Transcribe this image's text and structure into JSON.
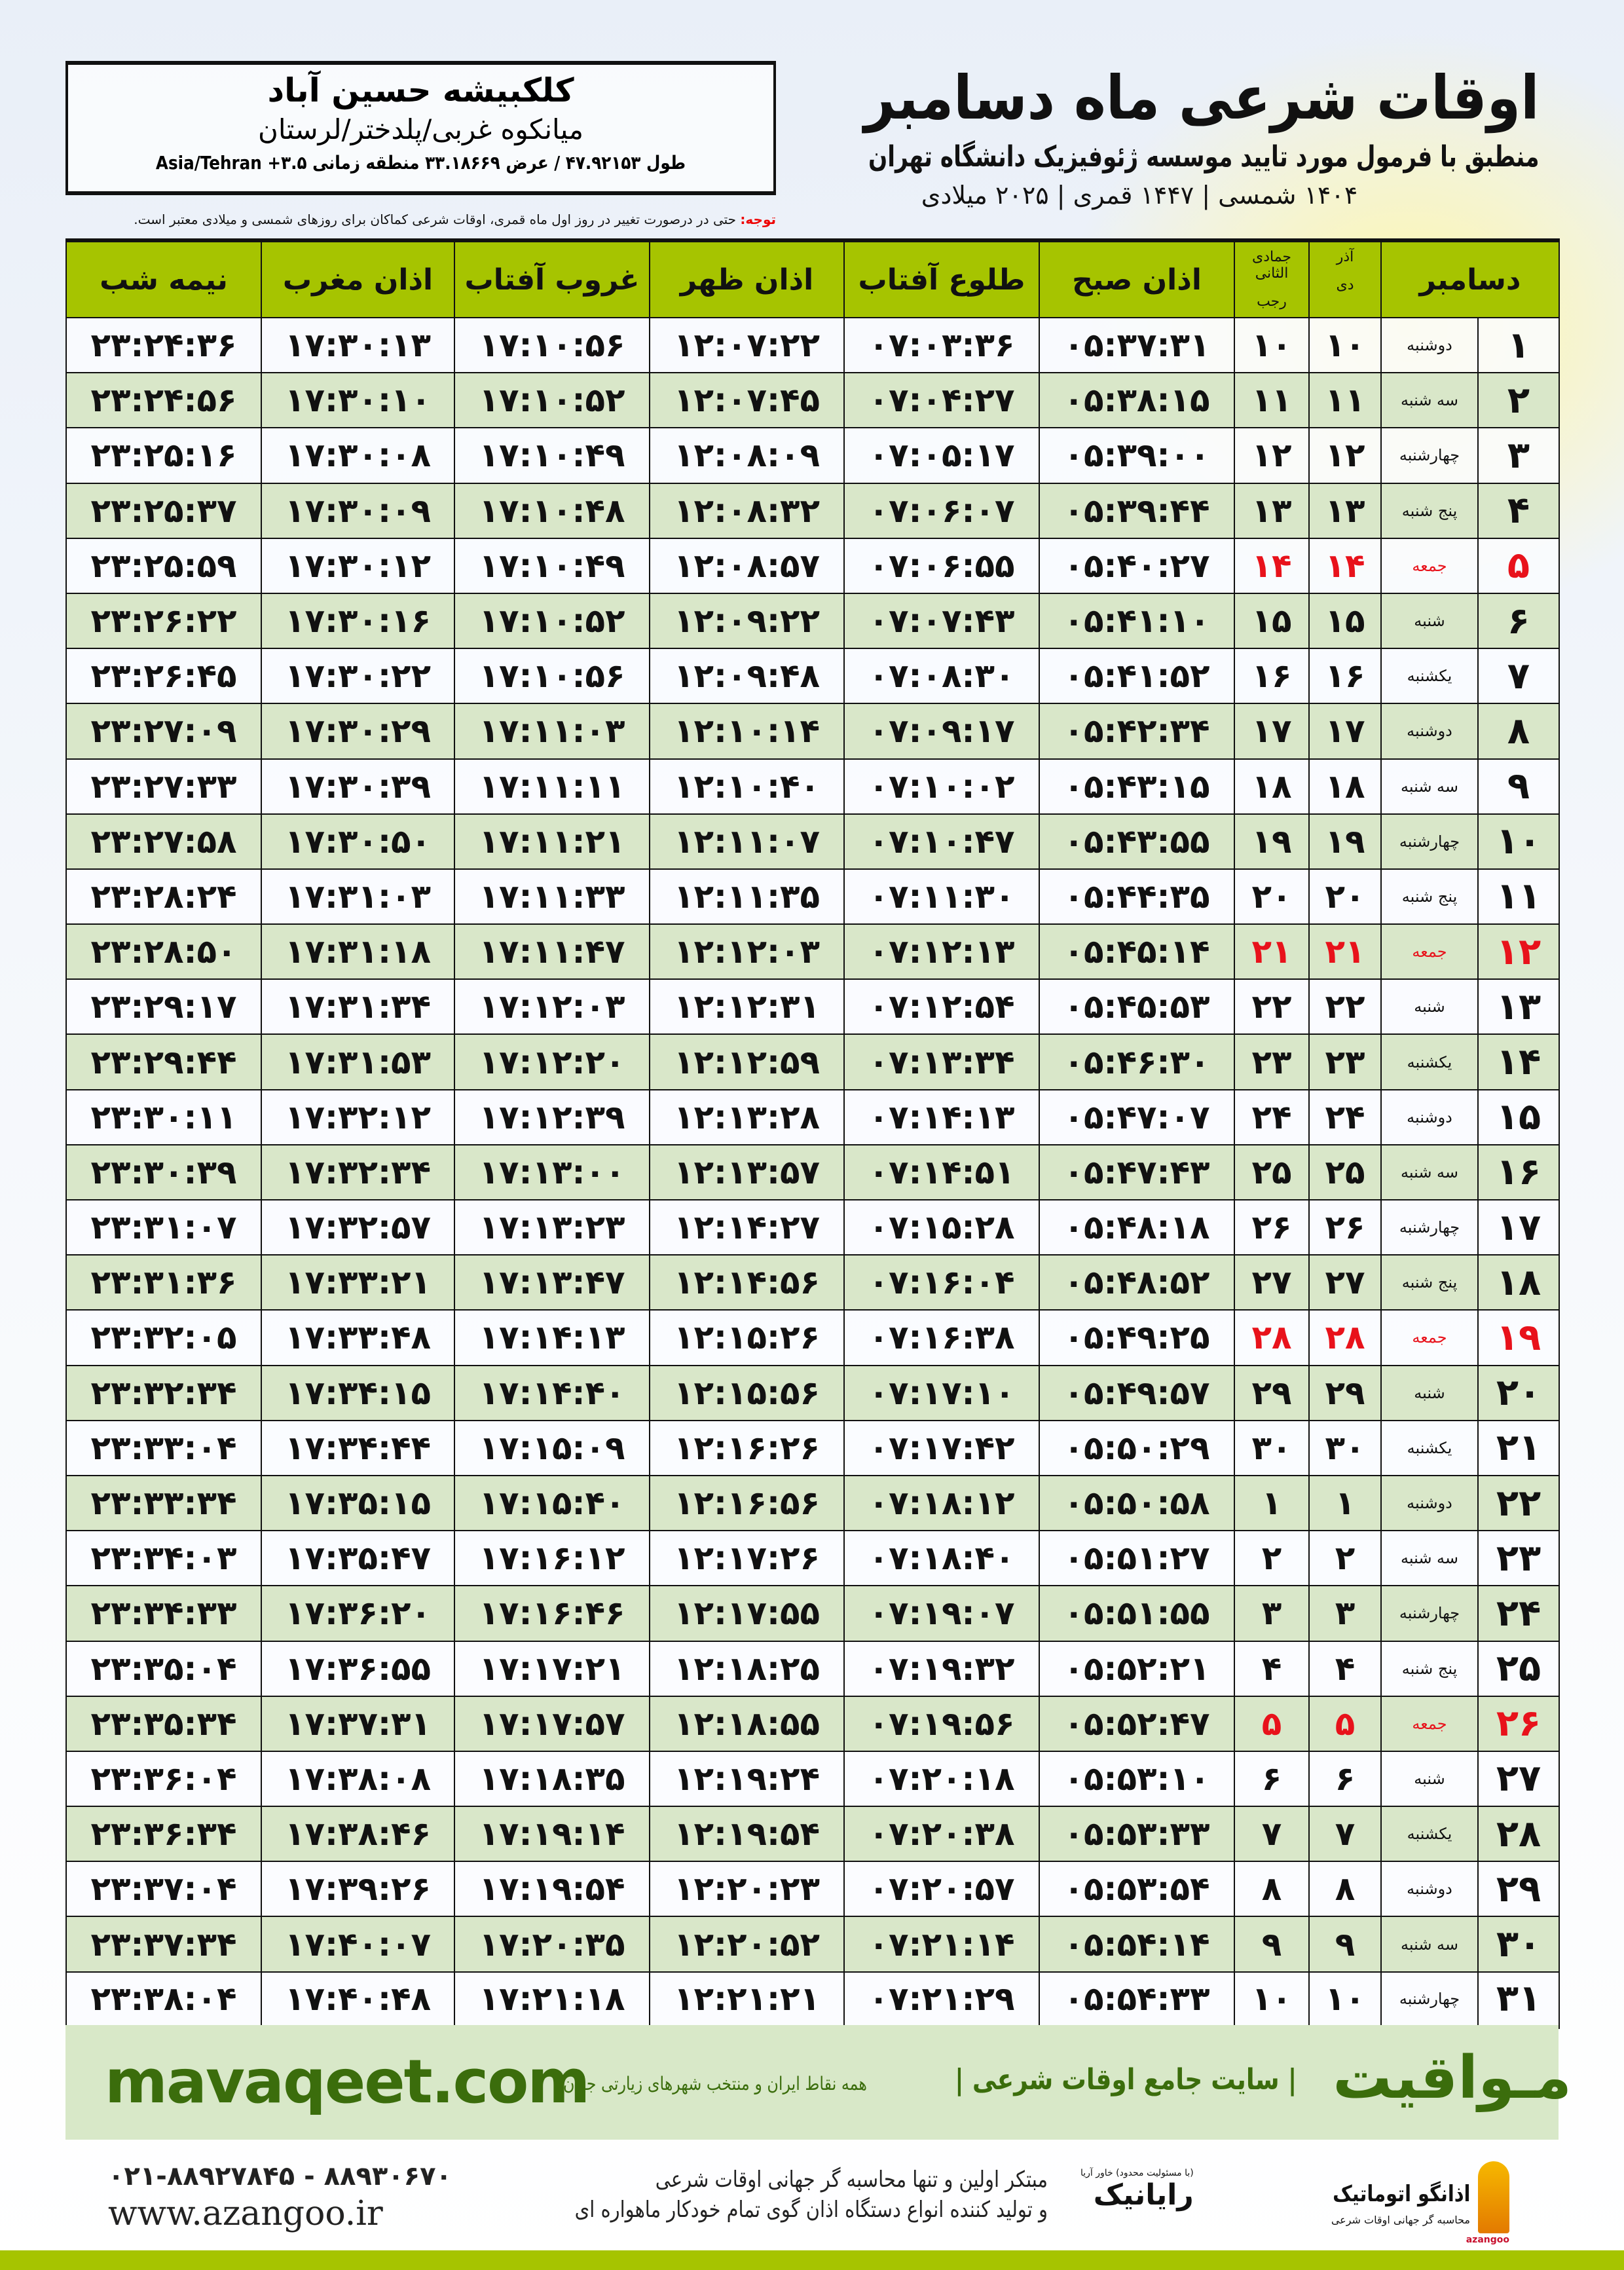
{
  "header": {
    "title": "اوقات شرعی ماه دسامبر",
    "subtitle": "منطبق با فرمول مورد تایید موسسه ژئوفیزیک دانشگاه تهران",
    "dates": "۱۴۰۴ شمسی | ۱۴۴۷ قمری | ۲۰۲۵ میلادی"
  },
  "location": {
    "name": "کلکبیشه حسین آباد",
    "region": "میانکوه غربی/پلدختر/لرستان",
    "coords": "طول ۴۷.۹۲۱۵۳ / عرض ۳۳.۱۸۶۶۹ منطقه زمانی ۳.۵+ Asia/Tehran"
  },
  "note": {
    "label": "توجه:",
    "text": " حتی در درصورت تغییر در روز اول ماه قمری، اوقات شرعی کماکان برای روزهای شمسی و میلادی معتبر است."
  },
  "columns": {
    "month": "دسامبر",
    "dey_month": "آذر",
    "dey": "دی",
    "hijri_month": "جمادی الثانی",
    "rajab": "رجب",
    "fajr": "اذان صبح",
    "sunrise": "طلوع آفتاب",
    "dhuhr": "اذان ظهر",
    "sunset": "غروب آفتاب",
    "maghrib": "اذان مغرب",
    "midnight": "نیمه شب"
  },
  "colors": {
    "header_green": "#a6c400",
    "row_green": "#d9e7c9",
    "friday_red": "#e8121b",
    "brand_green": "#3b6d0c"
  },
  "rows": [
    [
      "۱",
      "دوشنبه",
      "۱۰",
      "۱۰",
      "۰۵:۳۷:۳۱",
      "۰۷:۰۳:۳۶",
      "۱۲:۰۷:۲۲",
      "۱۷:۱۰:۵۶",
      "۱۷:۳۰:۱۳",
      "۲۳:۲۴:۳۶",
      false
    ],
    [
      "۲",
      "سه شنبه",
      "۱۱",
      "۱۱",
      "۰۵:۳۸:۱۵",
      "۰۷:۰۴:۲۷",
      "۱۲:۰۷:۴۵",
      "۱۷:۱۰:۵۲",
      "۱۷:۳۰:۱۰",
      "۲۳:۲۴:۵۶",
      false
    ],
    [
      "۳",
      "چهارشنبه",
      "۱۲",
      "۱۲",
      "۰۵:۳۹:۰۰",
      "۰۷:۰۵:۱۷",
      "۱۲:۰۸:۰۹",
      "۱۷:۱۰:۴۹",
      "۱۷:۳۰:۰۸",
      "۲۳:۲۵:۱۶",
      false
    ],
    [
      "۴",
      "پنج شنبه",
      "۱۳",
      "۱۳",
      "۰۵:۳۹:۴۴",
      "۰۷:۰۶:۰۷",
      "۱۲:۰۸:۳۲",
      "۱۷:۱۰:۴۸",
      "۱۷:۳۰:۰۹",
      "۲۳:۲۵:۳۷",
      false
    ],
    [
      "۵",
      "جمعه",
      "۱۴",
      "۱۴",
      "۰۵:۴۰:۲۷",
      "۰۷:۰۶:۵۵",
      "۱۲:۰۸:۵۷",
      "۱۷:۱۰:۴۹",
      "۱۷:۳۰:۱۲",
      "۲۳:۲۵:۵۹",
      true
    ],
    [
      "۶",
      "شنبه",
      "۱۵",
      "۱۵",
      "۰۵:۴۱:۱۰",
      "۰۷:۰۷:۴۳",
      "۱۲:۰۹:۲۲",
      "۱۷:۱۰:۵۲",
      "۱۷:۳۰:۱۶",
      "۲۳:۲۶:۲۲",
      false
    ],
    [
      "۷",
      "یکشنبه",
      "۱۶",
      "۱۶",
      "۰۵:۴۱:۵۲",
      "۰۷:۰۸:۳۰",
      "۱۲:۰۹:۴۸",
      "۱۷:۱۰:۵۶",
      "۱۷:۳۰:۲۲",
      "۲۳:۲۶:۴۵",
      false
    ],
    [
      "۸",
      "دوشنبه",
      "۱۷",
      "۱۷",
      "۰۵:۴۲:۳۴",
      "۰۷:۰۹:۱۷",
      "۱۲:۱۰:۱۴",
      "۱۷:۱۱:۰۳",
      "۱۷:۳۰:۲۹",
      "۲۳:۲۷:۰۹",
      false
    ],
    [
      "۹",
      "سه شنبه",
      "۱۸",
      "۱۸",
      "۰۵:۴۳:۱۵",
      "۰۷:۱۰:۰۲",
      "۱۲:۱۰:۴۰",
      "۱۷:۱۱:۱۱",
      "۱۷:۳۰:۳۹",
      "۲۳:۲۷:۳۳",
      false
    ],
    [
      "۱۰",
      "چهارشنبه",
      "۱۹",
      "۱۹",
      "۰۵:۴۳:۵۵",
      "۰۷:۱۰:۴۷",
      "۱۲:۱۱:۰۷",
      "۱۷:۱۱:۲۱",
      "۱۷:۳۰:۵۰",
      "۲۳:۲۷:۵۸",
      false
    ],
    [
      "۱۱",
      "پنج شنبه",
      "۲۰",
      "۲۰",
      "۰۵:۴۴:۳۵",
      "۰۷:۱۱:۳۰",
      "۱۲:۱۱:۳۵",
      "۱۷:۱۱:۳۳",
      "۱۷:۳۱:۰۳",
      "۲۳:۲۸:۲۴",
      false
    ],
    [
      "۱۲",
      "جمعه",
      "۲۱",
      "۲۱",
      "۰۵:۴۵:۱۴",
      "۰۷:۱۲:۱۳",
      "۱۲:۱۲:۰۳",
      "۱۷:۱۱:۴۷",
      "۱۷:۳۱:۱۸",
      "۲۳:۲۸:۵۰",
      true
    ],
    [
      "۱۳",
      "شنبه",
      "۲۲",
      "۲۲",
      "۰۵:۴۵:۵۳",
      "۰۷:۱۲:۵۴",
      "۱۲:۱۲:۳۱",
      "۱۷:۱۲:۰۳",
      "۱۷:۳۱:۳۴",
      "۲۳:۲۹:۱۷",
      false
    ],
    [
      "۱۴",
      "یکشنبه",
      "۲۳",
      "۲۳",
      "۰۵:۴۶:۳۰",
      "۰۷:۱۳:۳۴",
      "۱۲:۱۲:۵۹",
      "۱۷:۱۲:۲۰",
      "۱۷:۳۱:۵۳",
      "۲۳:۲۹:۴۴",
      false
    ],
    [
      "۱۵",
      "دوشنبه",
      "۲۴",
      "۲۴",
      "۰۵:۴۷:۰۷",
      "۰۷:۱۴:۱۳",
      "۱۲:۱۳:۲۸",
      "۱۷:۱۲:۳۹",
      "۱۷:۳۲:۱۲",
      "۲۳:۳۰:۱۱",
      false
    ],
    [
      "۱۶",
      "سه شنبه",
      "۲۵",
      "۲۵",
      "۰۵:۴۷:۴۳",
      "۰۷:۱۴:۵۱",
      "۱۲:۱۳:۵۷",
      "۱۷:۱۳:۰۰",
      "۱۷:۳۲:۳۴",
      "۲۳:۳۰:۳۹",
      false
    ],
    [
      "۱۷",
      "چهارشنبه",
      "۲۶",
      "۲۶",
      "۰۵:۴۸:۱۸",
      "۰۷:۱۵:۲۸",
      "۱۲:۱۴:۲۷",
      "۱۷:۱۳:۲۳",
      "۱۷:۳۲:۵۷",
      "۲۳:۳۱:۰۷",
      false
    ],
    [
      "۱۸",
      "پنج شنبه",
      "۲۷",
      "۲۷",
      "۰۵:۴۸:۵۲",
      "۰۷:۱۶:۰۴",
      "۱۲:۱۴:۵۶",
      "۱۷:۱۳:۴۷",
      "۱۷:۳۳:۲۱",
      "۲۳:۳۱:۳۶",
      false
    ],
    [
      "۱۹",
      "جمعه",
      "۲۸",
      "۲۸",
      "۰۵:۴۹:۲۵",
      "۰۷:۱۶:۳۸",
      "۱۲:۱۵:۲۶",
      "۱۷:۱۴:۱۳",
      "۱۷:۳۳:۴۸",
      "۲۳:۳۲:۰۵",
      true
    ],
    [
      "۲۰",
      "شنبه",
      "۲۹",
      "۲۹",
      "۰۵:۴۹:۵۷",
      "۰۷:۱۷:۱۰",
      "۱۲:۱۵:۵۶",
      "۱۷:۱۴:۴۰",
      "۱۷:۳۴:۱۵",
      "۲۳:۳۲:۳۴",
      false
    ],
    [
      "۲۱",
      "یکشنبه",
      "۳۰",
      "۳۰",
      "۰۵:۵۰:۲۹",
      "۰۷:۱۷:۴۲",
      "۱۲:۱۶:۲۶",
      "۱۷:۱۵:۰۹",
      "۱۷:۳۴:۴۴",
      "۲۳:۳۳:۰۴",
      false
    ],
    [
      "۲۲",
      "دوشنبه",
      "۱",
      "۱",
      "۰۵:۵۰:۵۸",
      "۰۷:۱۸:۱۲",
      "۱۲:۱۶:۵۶",
      "۱۷:۱۵:۴۰",
      "۱۷:۳۵:۱۵",
      "۲۳:۳۳:۳۴",
      false
    ],
    [
      "۲۳",
      "سه شنبه",
      "۲",
      "۲",
      "۰۵:۵۱:۲۷",
      "۰۷:۱۸:۴۰",
      "۱۲:۱۷:۲۶",
      "۱۷:۱۶:۱۲",
      "۱۷:۳۵:۴۷",
      "۲۳:۳۴:۰۳",
      false
    ],
    [
      "۲۴",
      "چهارشنبه",
      "۳",
      "۳",
      "۰۵:۵۱:۵۵",
      "۰۷:۱۹:۰۷",
      "۱۲:۱۷:۵۵",
      "۱۷:۱۶:۴۶",
      "۱۷:۳۶:۲۰",
      "۲۳:۳۴:۳۳",
      false
    ],
    [
      "۲۵",
      "پنج شنبه",
      "۴",
      "۴",
      "۰۵:۵۲:۲۱",
      "۰۷:۱۹:۳۲",
      "۱۲:۱۸:۲۵",
      "۱۷:۱۷:۲۱",
      "۱۷:۳۶:۵۵",
      "۲۳:۳۵:۰۴",
      false
    ],
    [
      "۲۶",
      "جمعه",
      "۵",
      "۵",
      "۰۵:۵۲:۴۷",
      "۰۷:۱۹:۵۶",
      "۱۲:۱۸:۵۵",
      "۱۷:۱۷:۵۷",
      "۱۷:۳۷:۳۱",
      "۲۳:۳۵:۳۴",
      true
    ],
    [
      "۲۷",
      "شنبه",
      "۶",
      "۶",
      "۰۵:۵۳:۱۰",
      "۰۷:۲۰:۱۸",
      "۱۲:۱۹:۲۴",
      "۱۷:۱۸:۳۵",
      "۱۷:۳۸:۰۸",
      "۲۳:۳۶:۰۴",
      false
    ],
    [
      "۲۸",
      "یکشنبه",
      "۷",
      "۷",
      "۰۵:۵۳:۳۳",
      "۰۷:۲۰:۳۸",
      "۱۲:۱۹:۵۴",
      "۱۷:۱۹:۱۴",
      "۱۷:۳۸:۴۶",
      "۲۳:۳۶:۳۴",
      false
    ],
    [
      "۲۹",
      "دوشنبه",
      "۸",
      "۸",
      "۰۵:۵۳:۵۴",
      "۰۷:۲۰:۵۷",
      "۱۲:۲۰:۲۳",
      "۱۷:۱۹:۵۴",
      "۱۷:۳۹:۲۶",
      "۲۳:۳۷:۰۴",
      false
    ],
    [
      "۳۰",
      "سه شنبه",
      "۹",
      "۹",
      "۰۵:۵۴:۱۴",
      "۰۷:۲۱:۱۴",
      "۱۲:۲۰:۵۲",
      "۱۷:۲۰:۳۵",
      "۱۷:۴۰:۰۷",
      "۲۳:۳۷:۳۴",
      false
    ],
    [
      "۳۱",
      "چهارشنبه",
      "۱۰",
      "۱۰",
      "۰۵:۵۴:۳۳",
      "۰۷:۲۱:۲۹",
      "۱۲:۲۱:۲۱",
      "۱۷:۲۱:۱۸",
      "۱۷:۴۰:۴۸",
      "۲۳:۳۸:۰۴",
      false
    ]
  ],
  "footer": {
    "brand": "مـواقیت",
    "tagline": "| سایت جامع اوقات شرعی |",
    "tagline2": "همه نقاط ایران و منتخب شهرهای زیارتی جهان",
    "site": "mavaqeet.com",
    "pitch_1a": "مبتکر اولین و تنها ",
    "pitch_1b": "محاسبه گر جهانی اوقات شرعی",
    "pitch_2a": "و تولید کننده انواع ",
    "pitch_2b": "دستگاه اذان گوی تمام خودکار ماهواره ای",
    "phone": "۰۲۱-۸۸۹۲۷۸۴۵ - ۸۸۹۳۰۶۷۰",
    "web": "www.azangoo.ir",
    "rayanik": "رایانیک",
    "rayanik_small": "(با مسئولیت محدود) خاور آریا",
    "azangoo_name": "اذانگو اتوماتیک",
    "azangoo_sub": "محاسبه گر جهانی اوقات شرعی",
    "azangoo_en": "azangoo"
  }
}
